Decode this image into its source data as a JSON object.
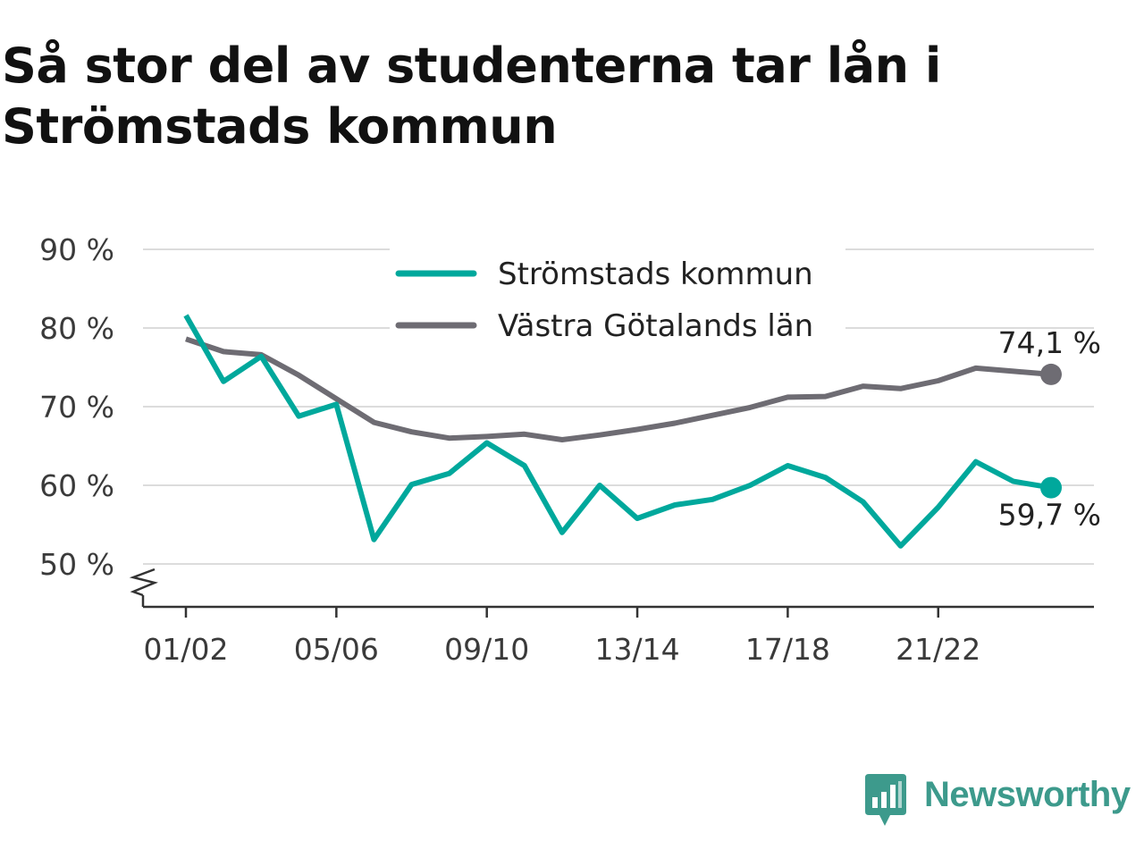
{
  "chart_data": {
    "type": "line",
    "title": "Så stor del av studenterna tar lån i Strömstads kommun",
    "x": [
      "01/02",
      "02/03",
      "03/04",
      "04/05",
      "05/06",
      "06/07",
      "07/08",
      "08/09",
      "09/10",
      "10/11",
      "11/12",
      "12/13",
      "13/14",
      "14/15",
      "15/16",
      "16/17",
      "17/18",
      "18/19",
      "19/20",
      "20/21",
      "21/22",
      "22/23",
      "23/24",
      "24/25"
    ],
    "x_tick_labels": [
      "01/02",
      "05/06",
      "09/10",
      "13/14",
      "17/18",
      "21/22"
    ],
    "y_ticks": [
      50,
      60,
      70,
      80,
      90
    ],
    "y_tick_suffix": " %",
    "ylim": [
      45,
      90
    ],
    "grid": true,
    "legend_position": "top-center",
    "series": [
      {
        "name": "Strömstads kommun",
        "color": "#00a89c",
        "values": [
          81.6,
          73.2,
          76.4,
          68.8,
          70.3,
          53.1,
          60.1,
          61.5,
          65.4,
          62.5,
          54.0,
          60.0,
          55.8,
          57.5,
          58.2,
          60.0,
          62.5,
          61.0,
          57.9,
          52.3,
          57.2,
          63.0,
          60.5,
          59.7
        ],
        "end_label": "59,7 %"
      },
      {
        "name": "Västra Götalands län",
        "color": "#6e6c73",
        "values": [
          78.6,
          77.0,
          76.6,
          74.0,
          71.0,
          68.0,
          66.8,
          66.0,
          66.2,
          66.5,
          65.8,
          66.4,
          67.1,
          67.9,
          68.9,
          69.9,
          71.2,
          71.3,
          72.6,
          72.3,
          73.3,
          74.9,
          74.5,
          74.1
        ],
        "end_label": "74,1 %"
      }
    ]
  },
  "brand": {
    "name": "Newsworthy",
    "color": "#3d9a8c"
  }
}
